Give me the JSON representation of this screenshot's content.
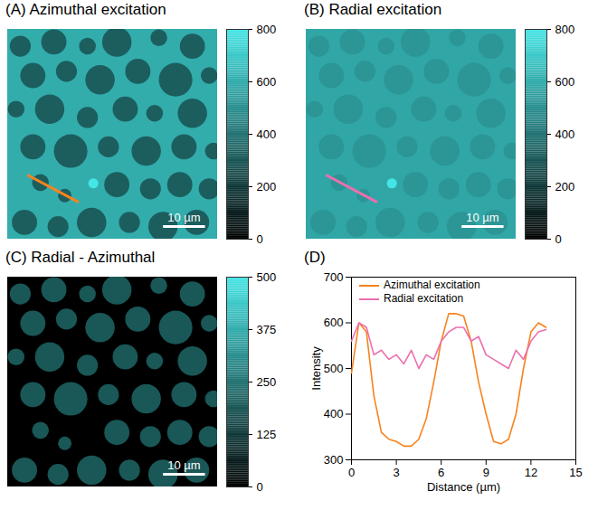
{
  "chart_data": [
    {
      "type": "image",
      "title": "(A) Azimuthal excitation",
      "xlim": [
        0,
        50
      ],
      "ylim": [
        0,
        50
      ],
      "tick_labels": false,
      "colors": [
        "#000000",
        "#44e5e5"
      ],
      "colorbar": {
        "lim": [
          0,
          800
        ],
        "ticks": [
          0,
          200,
          400,
          600,
          800
        ]
      },
      "background": 600,
      "domain_intensity": 330,
      "bright_spots": [
        {
          "x": 20.4,
          "y": 36.7,
          "r": 1.2,
          "value": 800
        }
      ],
      "profile": {
        "from": [
          4.7,
          34.7
        ],
        "to": [
          16.9,
          41.2
        ],
        "color": "#f7831e"
      },
      "scalebar": {
        "length": 10,
        "label": "10 µm"
      }
    },
    {
      "type": "image",
      "title": "(B) Radial excitation",
      "xlim": [
        0,
        50
      ],
      "ylim": [
        0,
        50
      ],
      "tick_labels": false,
      "colors": [
        "#000000",
        "#44e5e5"
      ],
      "colorbar": {
        "lim": [
          0,
          800
        ],
        "ticks": [
          0,
          200,
          400,
          600,
          800
        ]
      },
      "background": 580,
      "domain_intensity": 520,
      "bright_spots": [
        {
          "x": 20.4,
          "y": 36.7,
          "r": 1.2,
          "value": 800
        }
      ],
      "profile": {
        "from": [
          4.7,
          34.7
        ],
        "to": [
          16.9,
          41.2
        ],
        "color": "#ec6fae"
      },
      "scalebar": {
        "length": 10,
        "label": "10 µm"
      }
    },
    {
      "type": "image",
      "title": "(C) Radial - Azimuthal",
      "xlim": [
        0,
        50
      ],
      "ylim": [
        0,
        50
      ],
      "tick_labels": false,
      "colors": [
        "#000000",
        "#44e5e5"
      ],
      "colorbar": {
        "lim": [
          0,
          500
        ],
        "ticks": [
          0,
          125,
          250,
          375,
          500
        ]
      },
      "background": 0,
      "domain_intensity": 190,
      "scalebar": {
        "length": 10,
        "label": "10 µm"
      }
    },
    {
      "type": "line",
      "title": "(D)",
      "xlabel": "Distance (µm)",
      "ylabel": "Intensity",
      "xlim": [
        0,
        15
      ],
      "xticks": [
        0,
        3,
        6,
        9,
        12,
        15
      ],
      "ylim": [
        300,
        700
      ],
      "yticks": [
        300,
        400,
        500,
        600,
        700
      ],
      "legend": "upper left",
      "x": [
        0,
        0.5,
        1,
        1.5,
        2,
        2.5,
        3,
        3.5,
        4,
        4.5,
        5,
        5.5,
        6,
        6.5,
        7,
        7.5,
        8,
        8.5,
        9,
        9.5,
        10,
        10.5,
        11,
        11.5,
        12,
        12.5,
        13
      ],
      "series": [
        {
          "name": "Azimuthal excitation",
          "color": "#f7831e",
          "values": [
            490,
            600,
            580,
            440,
            360,
            345,
            340,
            330,
            330,
            345,
            390,
            470,
            560,
            620,
            620,
            615,
            560,
            470,
            400,
            340,
            335,
            345,
            400,
            500,
            580,
            600,
            590
          ]
        },
        {
          "name": "Radial excitation",
          "color": "#ec6fae",
          "values": [
            560,
            600,
            590,
            530,
            540,
            520,
            530,
            510,
            540,
            500,
            530,
            520,
            560,
            580,
            590,
            590,
            560,
            570,
            530,
            520,
            510,
            500,
            540,
            520,
            560,
            580,
            585
          ]
        }
      ]
    }
  ],
  "domains": [
    {
      "x": 3,
      "y": 4,
      "r": 2.5
    },
    {
      "x": 11,
      "y": 3,
      "r": 3
    },
    {
      "x": 19,
      "y": 4,
      "r": 2
    },
    {
      "x": 26,
      "y": 3,
      "r": 3.5
    },
    {
      "x": 36,
      "y": 2,
      "r": 2
    },
    {
      "x": 44,
      "y": 4,
      "r": 3
    },
    {
      "x": 6,
      "y": 11,
      "r": 3
    },
    {
      "x": 14,
      "y": 10,
      "r": 2.5
    },
    {
      "x": 22,
      "y": 12,
      "r": 3.5
    },
    {
      "x": 31,
      "y": 10,
      "r": 3
    },
    {
      "x": 40,
      "y": 12,
      "r": 4
    },
    {
      "x": 48,
      "y": 11,
      "r": 2
    },
    {
      "x": 2,
      "y": 19,
      "r": 2
    },
    {
      "x": 10,
      "y": 19,
      "r": 3.5
    },
    {
      "x": 19,
      "y": 21,
      "r": 2.5
    },
    {
      "x": 28,
      "y": 19,
      "r": 3
    },
    {
      "x": 35,
      "y": 20,
      "r": 2
    },
    {
      "x": 44,
      "y": 20,
      "r": 3.5
    },
    {
      "x": 6,
      "y": 28,
      "r": 3
    },
    {
      "x": 15,
      "y": 29,
      "r": 4
    },
    {
      "x": 24,
      "y": 28,
      "r": 2.5
    },
    {
      "x": 33,
      "y": 29,
      "r": 3.5
    },
    {
      "x": 42,
      "y": 28,
      "r": 3
    },
    {
      "x": 49,
      "y": 29,
      "r": 2
    },
    {
      "x": 7.8,
      "y": 36.5,
      "r": 2
    },
    {
      "x": 13.6,
      "y": 39.6,
      "r": 1.6
    },
    {
      "x": 26,
      "y": 37,
      "r": 3
    },
    {
      "x": 34,
      "y": 38,
      "r": 2.5
    },
    {
      "x": 41,
      "y": 37,
      "r": 3
    },
    {
      "x": 48,
      "y": 38,
      "r": 2.5
    },
    {
      "x": 4,
      "y": 46,
      "r": 3
    },
    {
      "x": 12,
      "y": 47,
      "r": 2.5
    },
    {
      "x": 20,
      "y": 46,
      "r": 3.5
    },
    {
      "x": 29,
      "y": 46,
      "r": 2.5
    },
    {
      "x": 37,
      "y": 47,
      "r": 3.5
    },
    {
      "x": 45,
      "y": 46,
      "r": 3
    }
  ]
}
